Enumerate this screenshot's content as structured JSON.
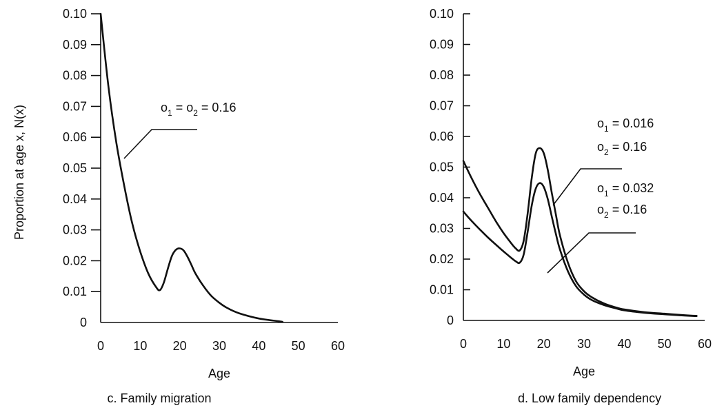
{
  "chart_data": [
    {
      "type": "line",
      "caption": "c. Family migration",
      "xlabel": "Age",
      "ylabel": "Proportion at age x, N(x)",
      "xlim": [
        0,
        60
      ],
      "ylim": [
        0,
        0.1
      ],
      "x_ticks": [
        "0",
        "10",
        "20",
        "30",
        "40",
        "50",
        "60"
      ],
      "y_ticks": [
        "0",
        "0.01",
        "0.02",
        "0.03",
        "0.04",
        "0.05",
        "0.06",
        "0.07",
        "0.08",
        "0.09",
        "0.10"
      ],
      "annotations": [
        {
          "parts": [
            "o",
            "1",
            " = o",
            "2",
            " = 0.16"
          ]
        }
      ],
      "series": [
        {
          "x": [
            0,
            2,
            4,
            6,
            8,
            10,
            12,
            14,
            15,
            16,
            17,
            18,
            19,
            20,
            21,
            22,
            23,
            24,
            26,
            28,
            30,
            32,
            35,
            40,
            45,
            46
          ],
          "y": [
            0.1,
            0.076,
            0.058,
            0.044,
            0.032,
            0.023,
            0.016,
            0.0115,
            0.0105,
            0.013,
            0.0175,
            0.0215,
            0.0235,
            0.024,
            0.0233,
            0.0212,
            0.0185,
            0.0158,
            0.0118,
            0.0086,
            0.0064,
            0.0047,
            0.003,
            0.0013,
            0.0004,
            0.0002
          ]
        }
      ]
    },
    {
      "type": "line",
      "caption": "d. Low family dependency",
      "xlabel": "Age",
      "xlim": [
        0,
        60
      ],
      "ylim": [
        0,
        0.1
      ],
      "x_ticks": [
        "0",
        "10",
        "20",
        "30",
        "40",
        "50",
        "60"
      ],
      "y_ticks": [
        "0",
        "0.01",
        "0.02",
        "0.03",
        "0.04",
        "0.05",
        "0.06",
        "0.07",
        "0.08",
        "0.09",
        "0.10"
      ],
      "annotations": [
        {
          "parts": [
            "o",
            "1",
            " = 0.016"
          ]
        },
        {
          "parts": [
            "o",
            "2",
            " = 0.16"
          ]
        },
        {
          "parts": [
            "o",
            "1",
            " = 0.032"
          ]
        },
        {
          "parts": [
            "o",
            "2",
            " = 0.16"
          ]
        }
      ],
      "series": [
        {
          "label_ref": "o1 = 0.016, o2 = 0.16",
          "x": [
            0,
            2,
            4,
            6,
            8,
            10,
            12,
            13,
            14,
            15,
            16,
            17,
            18,
            19,
            20,
            21,
            22,
            23,
            24,
            26,
            28,
            30,
            32,
            35,
            38,
            40,
            45,
            50,
            55,
            58
          ],
          "y": [
            0.052,
            0.0465,
            0.0415,
            0.037,
            0.0325,
            0.0285,
            0.025,
            0.0235,
            0.0228,
            0.026,
            0.035,
            0.0465,
            0.0545,
            0.0562,
            0.0545,
            0.049,
            0.0415,
            0.0345,
            0.0278,
            0.0188,
            0.0128,
            0.0095,
            0.0075,
            0.0055,
            0.0042,
            0.0036,
            0.0027,
            0.0022,
            0.0017,
            0.0015
          ]
        },
        {
          "label_ref": "o1 = 0.032, o2 = 0.16",
          "x": [
            0,
            2,
            4,
            6,
            8,
            10,
            12,
            13,
            14,
            15,
            16,
            17,
            18,
            19,
            20,
            21,
            22,
            23,
            24,
            26,
            28,
            30,
            32,
            35,
            38,
            40,
            45,
            50,
            55,
            58
          ],
          "y": [
            0.0355,
            0.0325,
            0.0298,
            0.0272,
            0.0248,
            0.0225,
            0.0203,
            0.0193,
            0.0188,
            0.0215,
            0.029,
            0.0375,
            0.043,
            0.0448,
            0.0435,
            0.0395,
            0.0338,
            0.0282,
            0.0232,
            0.016,
            0.0112,
            0.0084,
            0.0066,
            0.005,
            0.0039,
            0.0033,
            0.0025,
            0.002,
            0.0016,
            0.0014
          ]
        }
      ]
    }
  ]
}
